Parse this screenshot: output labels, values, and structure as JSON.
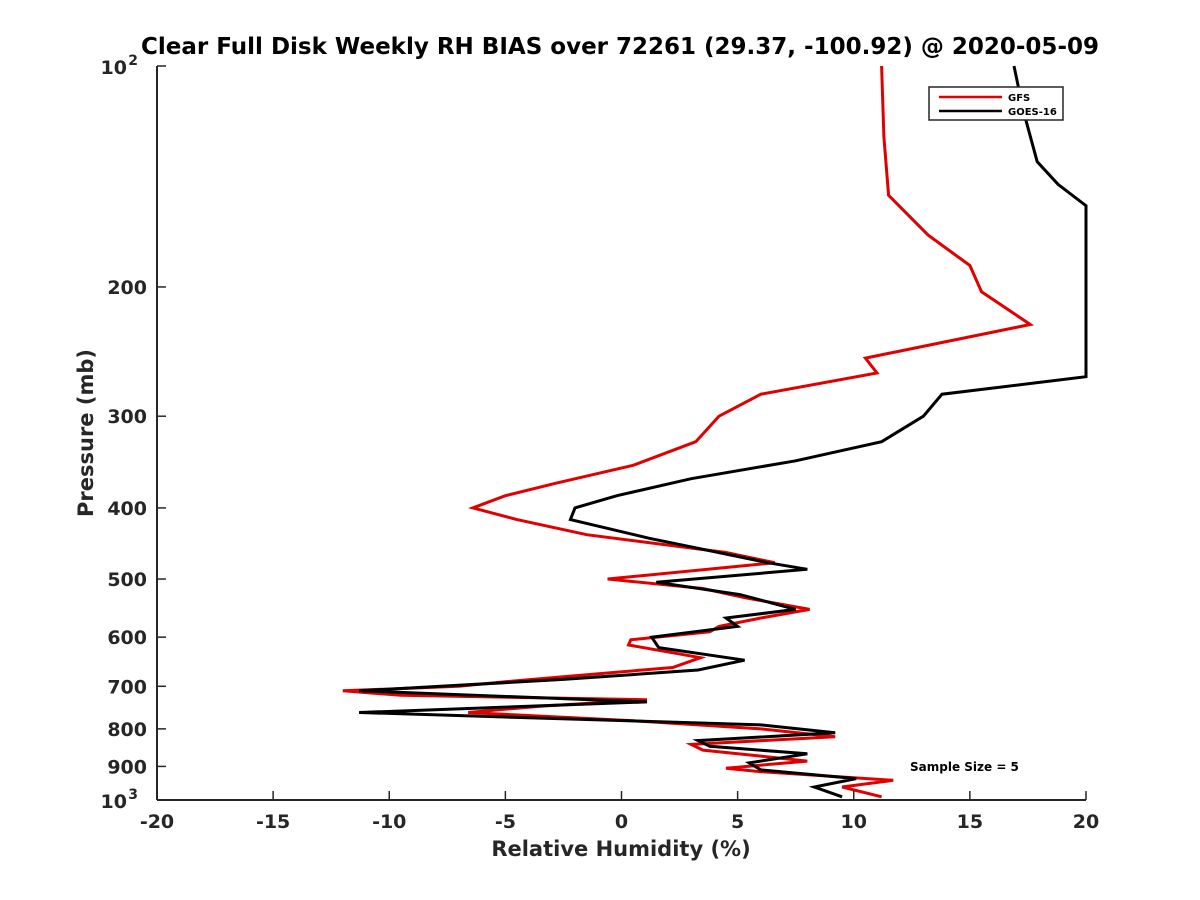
{
  "chart_data": {
    "type": "line",
    "title": "Clear Full Disk Weekly RH BIAS over 72261 (29.37, -100.92) @ 2020-05-09",
    "xlabel": "Relative Humidity (%)",
    "ylabel": "Pressure (mb)",
    "xlim": [
      -20,
      20
    ],
    "ylim": [
      100,
      1000
    ],
    "y_scale": "log",
    "y_reversed": true,
    "x_ticks": [
      "-20",
      "-15",
      "-10",
      "-5",
      "0",
      "5",
      "10",
      "15",
      "20"
    ],
    "x_tick_values": [
      -20,
      -15,
      -10,
      -5,
      0,
      5,
      10,
      15,
      20
    ],
    "y_tick_values": [
      100,
      200,
      300,
      400,
      500,
      600,
      700,
      800,
      900,
      1000
    ],
    "y_tick_labels": [
      "200",
      "300",
      "400",
      "500",
      "600",
      "700",
      "800",
      "900"
    ],
    "y_tick_pow_base": "10",
    "y_tick_pow_top": "2",
    "y_tick_pow_bottom": "3",
    "grid": false,
    "legend_position": "top-right",
    "annotation": "Sample Size = 5",
    "colors": {
      "GFS": "#e00000",
      "GOES-16": "#000000"
    },
    "series": [
      {
        "name": "GFS",
        "color": "#e00000",
        "points": [
          [
            11.2,
            100
          ],
          [
            11.3,
            125
          ],
          [
            11.5,
            150
          ],
          [
            13.2,
            170
          ],
          [
            15.0,
            187
          ],
          [
            15.5,
            203
          ],
          [
            17.6,
            225
          ],
          [
            10.5,
            250
          ],
          [
            11.0,
            262
          ],
          [
            6.0,
            280
          ],
          [
            4.2,
            300
          ],
          [
            3.2,
            325
          ],
          [
            0.5,
            350
          ],
          [
            -2.8,
            370
          ],
          [
            -5.0,
            385
          ],
          [
            -6.4,
            400
          ],
          [
            -4.5,
            415
          ],
          [
            -1.5,
            435
          ],
          [
            4.5,
            460
          ],
          [
            6.6,
            475
          ],
          [
            -0.6,
            500
          ],
          [
            3.5,
            515
          ],
          [
            5.3,
            530
          ],
          [
            8.1,
            550
          ],
          [
            6.0,
            565
          ],
          [
            4.2,
            580
          ],
          [
            3.8,
            590
          ],
          [
            0.4,
            605
          ],
          [
            0.3,
            615
          ],
          [
            3.4,
            640
          ],
          [
            2.2,
            660
          ],
          [
            -1.5,
            675
          ],
          [
            -5.0,
            690
          ],
          [
            -7.0,
            700
          ],
          [
            -12.0,
            710
          ],
          [
            -9.5,
            720
          ],
          [
            1.1,
            730
          ],
          [
            -3.5,
            745
          ],
          [
            -6.6,
            760
          ],
          [
            0.5,
            780
          ],
          [
            6.0,
            800
          ],
          [
            9.2,
            820
          ],
          [
            3.0,
            840
          ],
          [
            3.5,
            855
          ],
          [
            5.8,
            870
          ],
          [
            8.0,
            885
          ],
          [
            4.5,
            905
          ],
          [
            6.0,
            915
          ],
          [
            11.7,
            940
          ],
          [
            9.5,
            960
          ],
          [
            11.2,
            990
          ]
        ]
      },
      {
        "name": "GOES-16",
        "color": "#000000",
        "points": [
          [
            16.9,
            100
          ],
          [
            17.3,
            115
          ],
          [
            17.9,
            135
          ],
          [
            18.8,
            145
          ],
          [
            20.0,
            155
          ],
          [
            20.0,
            265
          ],
          [
            13.8,
            280
          ],
          [
            13.0,
            300
          ],
          [
            11.2,
            325
          ],
          [
            7.5,
            345
          ],
          [
            3.0,
            365
          ],
          [
            -0.2,
            385
          ],
          [
            -2.0,
            400
          ],
          [
            -2.2,
            415
          ],
          [
            1.2,
            440
          ],
          [
            6.3,
            475
          ],
          [
            8.0,
            485
          ],
          [
            1.5,
            505
          ],
          [
            5.1,
            525
          ],
          [
            7.5,
            550
          ],
          [
            4.5,
            565
          ],
          [
            5.0,
            580
          ],
          [
            1.3,
            600
          ],
          [
            1.6,
            620
          ],
          [
            5.3,
            645
          ],
          [
            3.3,
            665
          ],
          [
            -2.5,
            685
          ],
          [
            -11.3,
            710
          ],
          [
            1.1,
            735
          ],
          [
            -11.3,
            760
          ],
          [
            6.0,
            790
          ],
          [
            9.2,
            810
          ],
          [
            3.3,
            830
          ],
          [
            3.8,
            845
          ],
          [
            8.0,
            865
          ],
          [
            5.5,
            890
          ],
          [
            6.0,
            910
          ],
          [
            10.1,
            935
          ],
          [
            8.3,
            960
          ],
          [
            9.5,
            990
          ]
        ]
      }
    ]
  }
}
